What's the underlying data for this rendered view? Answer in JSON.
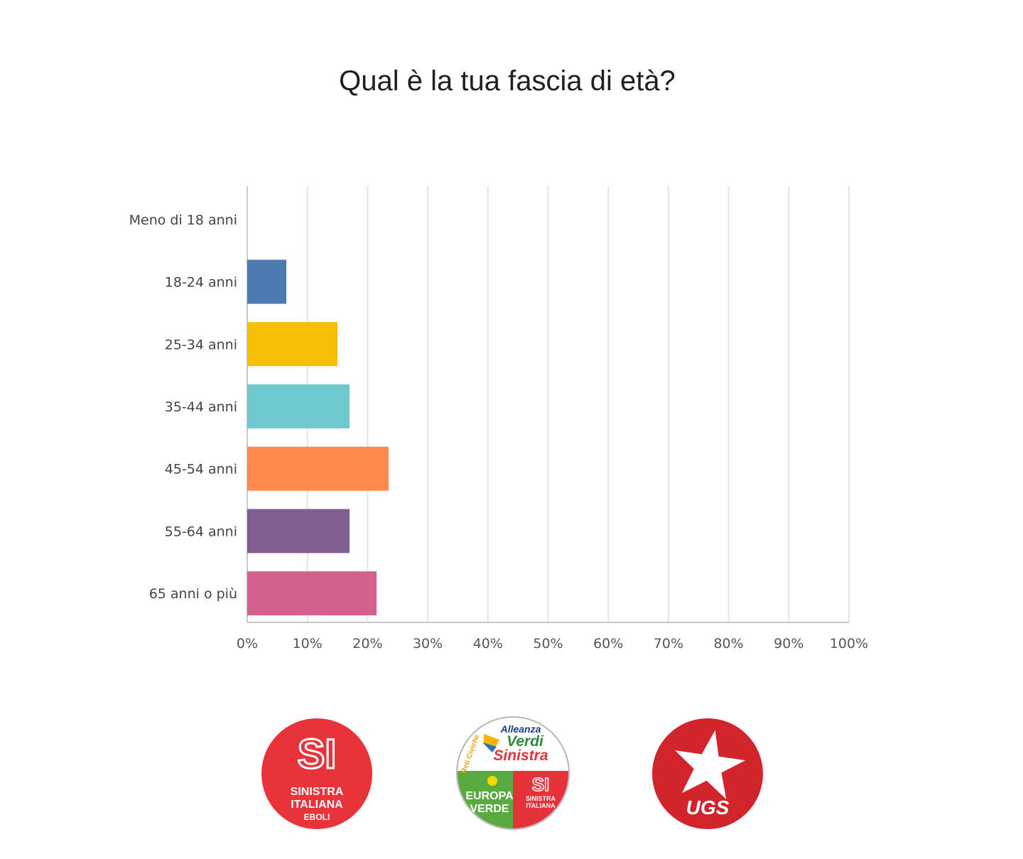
{
  "chart_data": {
    "type": "bar",
    "orientation": "horizontal",
    "title": "Qual è la tua fascia di età?",
    "categories": [
      "Meno di 18 anni",
      "18-24 anni",
      "25-34 anni",
      "35-44 anni",
      "45-54 anni",
      "55-64 anni",
      "65 anni o più"
    ],
    "values": [
      0,
      6.5,
      15,
      17,
      23.5,
      17,
      21.5
    ],
    "colors": [
      "#4e7ab4",
      "#4e7ab4",
      "#f6bf06",
      "#6ecacc",
      "#fd8b4e",
      "#7e5f90",
      "#d4608e"
    ],
    "xlim": [
      0,
      100
    ],
    "x_ticks": [
      "0%",
      "10%",
      "20%",
      "30%",
      "40%",
      "50%",
      "60%",
      "70%",
      "80%",
      "90%",
      "100%"
    ],
    "grid": true,
    "xlabel": "",
    "ylabel": ""
  },
  "logos": {
    "si_eboli": {
      "mark": "SI",
      "line1": "SINISTRA",
      "line2": "ITALIANA",
      "line3": "EBOLI",
      "color": "#e8333a"
    },
    "avs": {
      "line1": "Alleanza",
      "line2": "Verdi",
      "line3": "Sinistra",
      "side": "Reti Civiche",
      "europa": "EUROPA",
      "verde": "VERDE",
      "si_mark": "SI",
      "si_line1": "SINISTRA",
      "si_line2": "ITALIANA",
      "green": "#5aaa42",
      "red": "#e53238"
    },
    "ugs": {
      "text": "UGS",
      "color": "#d2242b",
      "icon": "star-icon"
    }
  }
}
